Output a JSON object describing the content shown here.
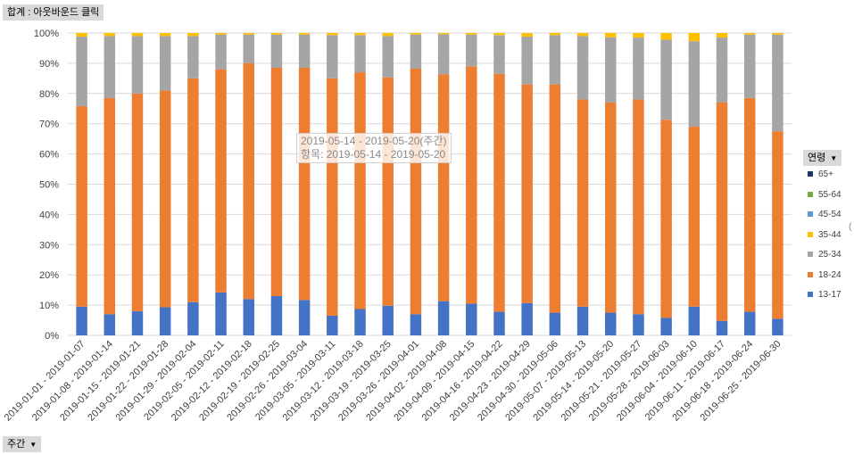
{
  "header": {
    "title_field": "합계 : 아웃바운드 클릭"
  },
  "axis_field": {
    "label": "주간",
    "icon": "dropdown-arrow-icon"
  },
  "legend": {
    "field_label": "연령",
    "icon": "dropdown-arrow-icon",
    "items": [
      {
        "label": "65+",
        "color": "#203864"
      },
      {
        "label": "55-64",
        "color": "#70ad47"
      },
      {
        "label": "45-54",
        "color": "#5b9bd5"
      },
      {
        "label": "35-44",
        "color": "#ffc000"
      },
      {
        "label": "25-34",
        "color": "#a5a5a5"
      },
      {
        "label": "18-24",
        "color": "#ed7d31"
      },
      {
        "label": "13-17",
        "color": "#4472c4"
      }
    ]
  },
  "tooltip": {
    "line1": "2019-05-14 - 2019-05-20(주간)",
    "line2": "항목: 2019-05-14 - 2019-05-20"
  },
  "chart_data": {
    "type": "bar",
    "stacked": true,
    "percent_stacked": true,
    "ylim": [
      0,
      100
    ],
    "yticks": [
      "0%",
      "10%",
      "20%",
      "30%",
      "40%",
      "50%",
      "60%",
      "70%",
      "80%",
      "90%",
      "100%"
    ],
    "grid": true,
    "legend_position": "right",
    "categories": [
      "2019-01-01 - 2019-01-07",
      "2019-01-08 - 2019-01-14",
      "2019-01-15 - 2019-01-21",
      "2019-01-22 - 2019-01-28",
      "2019-01-29 - 2019-02-04",
      "2019-02-05 - 2019-02-11",
      "2019-02-12 - 2019-02-18",
      "2019-02-19 - 2019-02-25",
      "2019-02-26 - 2019-03-04",
      "2019-03-05 - 2019-03-11",
      "2019-03-12 - 2019-03-18",
      "2019-03-19 - 2019-03-25",
      "2019-03-26 - 2019-04-01",
      "2019-04-02 - 2019-04-08",
      "2019-04-09 - 2019-04-15",
      "2019-04-16 - 2019-04-22",
      "2019-04-23 - 2019-04-29",
      "2019-04-30 - 2019-05-06",
      "2019-05-07 - 2019-05-13",
      "2019-05-14 - 2019-05-20",
      "2019-05-21 - 2019-05-27",
      "2019-05-28 - 2019-06-03",
      "2019-06-04 - 2019-06-10",
      "2019-06-11 - 2019-06-17",
      "2019-06-18 - 2019-06-24",
      "2019-06-25 - 2019-06-30"
    ],
    "series": [
      {
        "name": "13-17",
        "color": "#4472c4",
        "values": [
          9.5,
          7,
          8,
          9.3,
          11,
          14.2,
          12,
          13,
          11.7,
          6.5,
          8.7,
          9.8,
          7,
          11.3,
          10.5,
          7.8,
          10.7,
          7.5,
          9.5,
          7.5,
          7,
          5.8,
          9.5,
          4.8,
          7.8,
          5.5
        ]
      },
      {
        "name": "18-24",
        "color": "#ed7d31",
        "values": [
          66.3,
          71.5,
          72,
          71.7,
          74,
          73.8,
          78,
          75.5,
          76.8,
          78.5,
          78.3,
          75.5,
          81.2,
          75,
          78.5,
          78.7,
          72.3,
          75.5,
          68.5,
          69.5,
          71,
          65.5,
          59.5,
          72.2,
          70.7,
          62
        ]
      },
      {
        "name": "25-34",
        "color": "#a5a5a5",
        "values": [
          23,
          20.5,
          19,
          18,
          14,
          11.5,
          9.5,
          11,
          11,
          14.3,
          12.3,
          13.7,
          11.3,
          13.3,
          10.5,
          12.8,
          15.8,
          16.3,
          21,
          21.6,
          20.5,
          26.5,
          28.3,
          21.5,
          21,
          32
        ]
      },
      {
        "name": "35-44",
        "color": "#ffc000",
        "values": [
          1.2,
          1,
          1,
          1,
          1,
          0.5,
          0.5,
          0.5,
          0.5,
          0.7,
          0.7,
          1,
          0.5,
          0.4,
          0.5,
          0.7,
          1.2,
          0.7,
          1,
          1.4,
          1.5,
          2.2,
          2.7,
          1.5,
          0.5,
          0.5
        ]
      },
      {
        "name": "45-54",
        "color": "#5b9bd5",
        "values": [
          0,
          0,
          0,
          0,
          0,
          0,
          0,
          0,
          0,
          0,
          0,
          0,
          0,
          0,
          0,
          0,
          0,
          0,
          0,
          0,
          0,
          0,
          0,
          0,
          0,
          0
        ]
      },
      {
        "name": "55-64",
        "color": "#70ad47",
        "values": [
          0,
          0,
          0,
          0,
          0,
          0,
          0,
          0,
          0,
          0,
          0,
          0,
          0,
          0,
          0,
          0,
          0,
          0,
          0,
          0,
          0,
          0,
          0,
          0,
          0,
          0
        ]
      },
      {
        "name": "65+",
        "color": "#203864",
        "values": [
          0,
          0,
          0,
          0,
          0,
          0,
          0,
          0,
          0,
          0,
          0,
          0,
          0,
          0,
          0,
          0,
          0,
          0,
          0,
          0,
          0,
          0,
          0,
          0,
          0,
          0
        ]
      }
    ]
  }
}
